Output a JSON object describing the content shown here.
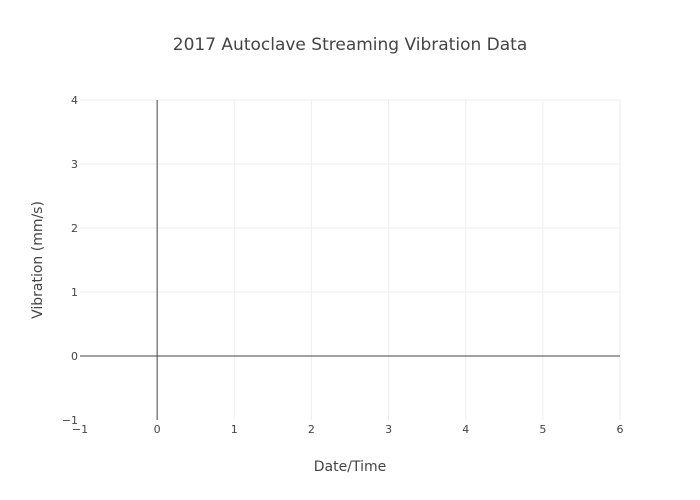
{
  "chart_data": {
    "type": "line",
    "title": "2017 Autoclave Streaming Vibration Data",
    "xlabel": "Date/Time",
    "ylabel": "Vibration (mm/s)",
    "xlim": [
      -1,
      6
    ],
    "ylim": [
      -1,
      4
    ],
    "xticks": [
      "−1",
      "0",
      "1",
      "2",
      "3",
      "4",
      "5",
      "6"
    ],
    "yticks": [
      "−1",
      "0",
      "1",
      "2",
      "3",
      "4"
    ],
    "series": [],
    "grid": true,
    "colors": {
      "grid": "#eeeeee",
      "zero_line": "#444444",
      "text": "#444444"
    }
  }
}
